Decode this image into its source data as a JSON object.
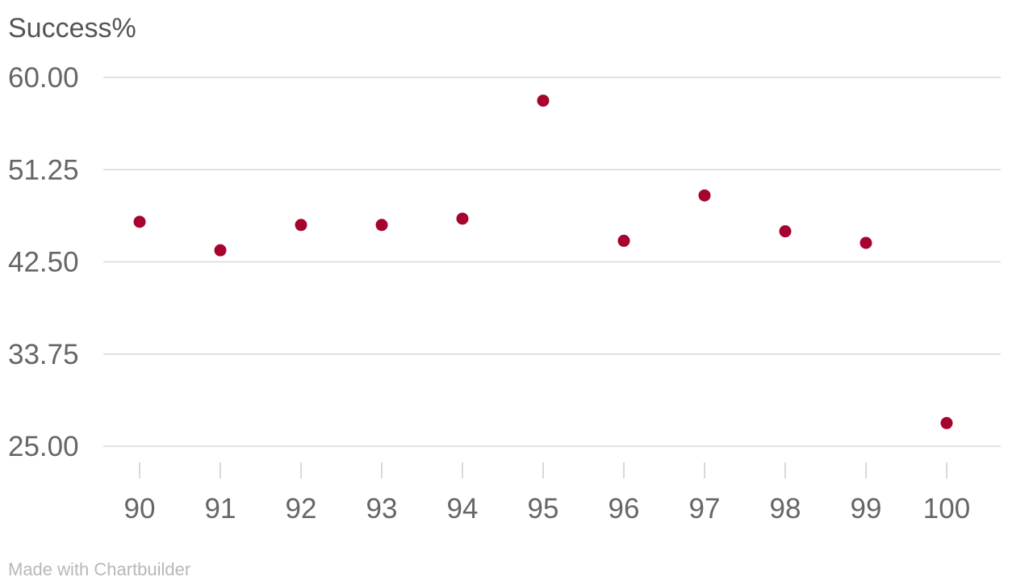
{
  "chart_data": {
    "type": "scatter",
    "title": "",
    "xlabel": "",
    "ylabel": "Success%",
    "x": [
      90,
      91,
      92,
      93,
      94,
      95,
      96,
      97,
      98,
      99,
      100
    ],
    "y": [
      46.3,
      43.6,
      46.0,
      46.0,
      46.6,
      57.8,
      44.5,
      48.8,
      45.4,
      44.3,
      27.2
    ],
    "yticks": [
      "60.00",
      "51.25",
      "42.50",
      "33.75",
      "25.00"
    ],
    "xticks": [
      "90",
      "91",
      "92",
      "93",
      "94",
      "95",
      "96",
      "97",
      "98",
      "99",
      "100"
    ],
    "ylim": [
      25,
      60
    ],
    "xlim": [
      90,
      100
    ],
    "grid": true,
    "point_color": "#a6032f"
  },
  "footer": {
    "credit": "Made with Chartbuilder"
  }
}
